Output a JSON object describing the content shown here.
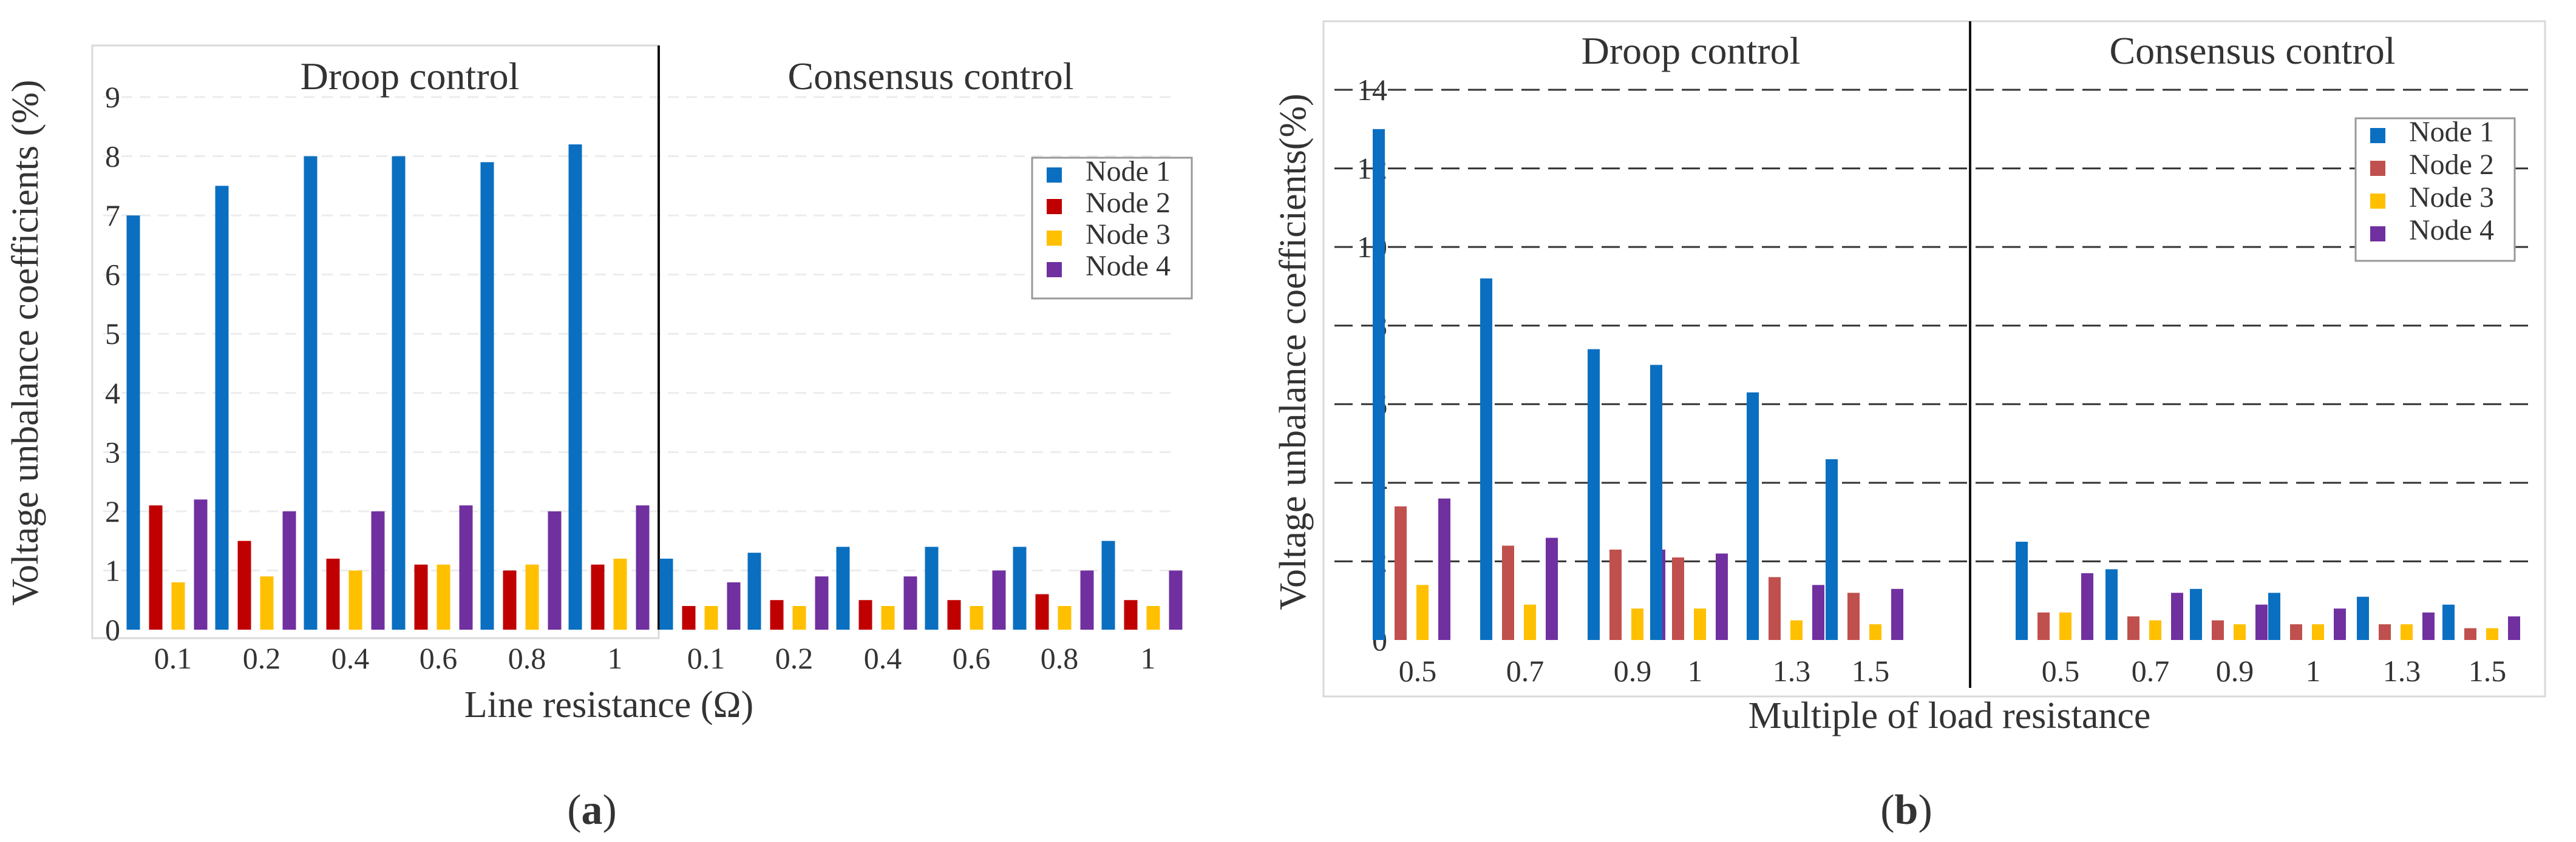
{
  "colors": {
    "node1": "#0a6fc0",
    "node2_a": "#c00000",
    "node2_b": "#c0504d",
    "node3": "#ffc000",
    "node4": "#7030a0"
  },
  "panel_labels": [
    "(a)",
    "(b)"
  ],
  "chart_data": [
    {
      "type": "bar",
      "ylabel": "Voltage unbalance coefficients (%)",
      "xlabel": "Line resistance (Ω)",
      "ylim": [
        0,
        9
      ],
      "yticks": [
        "0",
        "1",
        "2",
        "3",
        "4",
        "5",
        "6",
        "7",
        "8",
        "9"
      ],
      "grid": true,
      "legend_position": "top-right",
      "legend": [
        "Node 1",
        "Node 2",
        "Node 3",
        "Node 4"
      ],
      "groups": [
        {
          "title": "Droop control",
          "categories": [
            "0.1",
            "0.2",
            "0.4",
            "0.6",
            "0.8",
            "1"
          ],
          "series": [
            {
              "name": "Node 1",
              "values": [
                7.0,
                7.5,
                8.0,
                8.0,
                7.9,
                8.2
              ]
            },
            {
              "name": "Node 2",
              "values": [
                2.1,
                1.5,
                1.2,
                1.1,
                1.0,
                1.1
              ]
            },
            {
              "name": "Node 3",
              "values": [
                0.8,
                0.9,
                1.0,
                1.1,
                1.1,
                1.2
              ]
            },
            {
              "name": "Node 4",
              "values": [
                2.2,
                2.0,
                2.0,
                2.1,
                2.0,
                2.1
              ]
            }
          ]
        },
        {
          "title": "Consensus control",
          "categories": [
            "0.1",
            "0.2",
            "0.4",
            "0.6",
            "0.8",
            "1"
          ],
          "series": [
            {
              "name": "Node 1",
              "values": [
                1.2,
                1.3,
                1.4,
                1.4,
                1.4,
                1.5
              ]
            },
            {
              "name": "Node 2",
              "values": [
                0.4,
                0.5,
                0.5,
                0.5,
                0.6,
                0.5
              ]
            },
            {
              "name": "Node 3",
              "values": [
                0.4,
                0.4,
                0.4,
                0.4,
                0.4,
                0.4
              ]
            },
            {
              "name": "Node 4",
              "values": [
                0.8,
                0.9,
                0.9,
                1.0,
                1.0,
                1.0
              ]
            }
          ]
        }
      ]
    },
    {
      "type": "bar",
      "ylabel": "Voltage unbalance coefficients(%)",
      "xlabel": "Multiple of load resistance",
      "ylim": [
        0,
        14
      ],
      "yticks": [
        "0",
        "2",
        "4",
        "6",
        "8",
        "10",
        "12",
        "14"
      ],
      "grid": true,
      "legend_position": "top-right",
      "legend": [
        "Node 1",
        "Node 2",
        "Node 3",
        "Node 4"
      ],
      "groups": [
        {
          "title": "Droop control",
          "categories": [
            "0.5",
            "0.7",
            "0.9",
            "1",
            "1.3",
            "1.5"
          ],
          "series": [
            {
              "name": "Node 1",
              "values": [
                13.0,
                9.2,
                7.4,
                7.0,
                6.3,
                4.6
              ]
            },
            {
              "name": "Node 2",
              "values": [
                3.4,
                2.4,
                2.3,
                2.1,
                1.6,
                1.2
              ]
            },
            {
              "name": "Node 3",
              "values": [
                1.4,
                0.9,
                0.8,
                0.8,
                0.5,
                0.4
              ]
            },
            {
              "name": "Node 4",
              "values": [
                3.6,
                2.6,
                2.3,
                2.2,
                1.4,
                1.3
              ]
            }
          ]
        },
        {
          "title": "Consensus control",
          "categories": [
            "0.5",
            "0.7",
            "0.9",
            "1",
            "1.3",
            "1.5"
          ],
          "series": [
            {
              "name": "Node 1",
              "values": [
                2.5,
                1.8,
                1.3,
                1.2,
                1.1,
                0.9
              ]
            },
            {
              "name": "Node 2",
              "values": [
                0.7,
                0.6,
                0.5,
                0.4,
                0.4,
                0.3
              ]
            },
            {
              "name": "Node 3",
              "values": [
                0.7,
                0.5,
                0.4,
                0.4,
                0.4,
                0.3
              ]
            },
            {
              "name": "Node 4",
              "values": [
                1.7,
                1.2,
                0.9,
                0.8,
                0.7,
                0.6
              ]
            }
          ]
        }
      ]
    }
  ]
}
